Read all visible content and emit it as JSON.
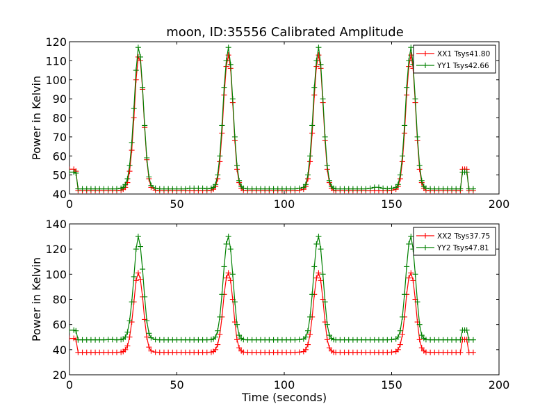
{
  "figure_title": "moon, ID:35556 Calibrated Amplitude",
  "chart_data": [
    {
      "type": "line",
      "title": "moon, ID:35556 Calibrated Amplitude",
      "xlabel": "",
      "ylabel": "Power in Kelvin",
      "xlim": [
        0,
        200
      ],
      "ylim": [
        40,
        120
      ],
      "xticks": [
        0,
        50,
        100,
        150,
        200
      ],
      "yticks": [
        40,
        50,
        60,
        70,
        80,
        90,
        100,
        110,
        120
      ],
      "legend_position": "top-right",
      "grid": false,
      "marker": "+",
      "x": [
        0,
        2,
        3,
        4,
        6,
        8,
        10,
        12,
        14,
        16,
        18,
        20,
        22,
        24,
        25,
        26,
        27,
        28,
        29,
        30,
        31,
        32,
        33,
        34,
        35,
        36,
        37,
        38,
        40,
        42,
        44,
        46,
        48,
        50,
        52,
        54,
        56,
        58,
        60,
        62,
        64,
        66,
        67,
        68,
        69,
        70,
        71,
        72,
        73,
        74,
        75,
        76,
        77,
        78,
        79,
        80,
        81,
        83,
        85,
        87,
        89,
        91,
        93,
        95,
        97,
        99,
        101,
        103,
        105,
        107,
        109,
        110,
        111,
        112,
        113,
        114,
        115,
        116,
        117,
        118,
        119,
        120,
        121,
        122,
        123,
        124,
        126,
        128,
        130,
        132,
        134,
        136,
        138,
        140,
        142,
        144,
        146,
        148,
        150,
        152,
        153,
        154,
        155,
        156,
        157,
        158,
        159,
        160,
        161,
        162,
        163,
        164,
        165,
        166,
        168,
        170,
        172,
        174,
        176,
        178,
        180,
        182,
        183,
        184,
        185,
        186,
        188
      ],
      "series": [
        {
          "name": "XX1 Tsys41.80",
          "color": "#ff0000",
          "values": [
            53,
            53,
            52,
            41.8,
            41.8,
            41.8,
            41.8,
            41.8,
            41.8,
            41.8,
            41.8,
            41.8,
            41.8,
            42,
            42.5,
            43.5,
            46,
            52,
            63,
            80,
            100,
            112,
            110,
            95,
            75,
            58,
            48,
            43.5,
            42,
            41.8,
            41.8,
            41.8,
            41.8,
            41.8,
            41.8,
            41.8,
            41.8,
            41.8,
            41.8,
            41.8,
            41.8,
            42,
            42.5,
            44,
            48,
            57,
            72,
            92,
            107,
            113,
            106,
            88,
            68,
            53,
            46,
            43,
            42,
            41.8,
            41.8,
            41.8,
            41.8,
            41.8,
            41.8,
            41.8,
            41.8,
            41.8,
            41.8,
            41.8,
            41.8,
            42,
            42.5,
            44,
            48,
            57,
            72,
            92,
            107,
            113,
            106,
            88,
            68,
            53,
            46,
            43,
            42,
            41.8,
            41.8,
            41.8,
            41.8,
            41.8,
            41.8,
            41.8,
            41.8,
            41.8,
            41.8,
            41.8,
            41.8,
            41.8,
            42,
            42.5,
            44,
            48,
            57,
            72,
            92,
            107,
            113,
            106,
            88,
            68,
            53,
            46,
            43,
            42,
            41.8,
            41.8,
            41.8,
            41.8,
            41.8,
            41.8,
            41.8,
            41.8,
            53,
            53,
            53,
            41.8,
            41.8
          ]
        },
        {
          "name": "YY1 Tsys42.66",
          "color": "#008000",
          "values": [
            51.5,
            51.5,
            51,
            42.7,
            42.7,
            42.7,
            42.7,
            42.7,
            42.7,
            42.7,
            42.7,
            42.7,
            42.7,
            43,
            43.5,
            45,
            48,
            55,
            67,
            85,
            105,
            117,
            112,
            96,
            76,
            59,
            49,
            44.5,
            43,
            42.7,
            42.7,
            42.7,
            42.7,
            42.7,
            42.7,
            42.7,
            43,
            43,
            43,
            43,
            42.7,
            43,
            43.5,
            45,
            50,
            60,
            76,
            96,
            110,
            117,
            108,
            90,
            70,
            55,
            47,
            44,
            43,
            42.7,
            42.7,
            42.7,
            42.7,
            42.7,
            42.7,
            42.7,
            42.7,
            42.7,
            42.7,
            42.7,
            42.7,
            43,
            43.5,
            45,
            50,
            60,
            76,
            96,
            110,
            117,
            108,
            90,
            70,
            55,
            47,
            44,
            43,
            42.7,
            42.7,
            42.7,
            42.7,
            42.7,
            42.7,
            42.7,
            42.7,
            43,
            43.5,
            43.5,
            43,
            42.7,
            43,
            43.5,
            45,
            50,
            60,
            76,
            96,
            110,
            117,
            108,
            90,
            70,
            55,
            47,
            44,
            43,
            42.7,
            42.7,
            42.7,
            42.7,
            42.7,
            42.7,
            42.7,
            42.7,
            51.5,
            51.5,
            51.5,
            42.7,
            42.7
          ]
        }
      ]
    },
    {
      "type": "line",
      "title": "",
      "xlabel": "Time (seconds)",
      "ylabel": "Power in Kelvin",
      "xlim": [
        0,
        200
      ],
      "ylim": [
        20,
        140
      ],
      "xticks": [
        0,
        50,
        100,
        150,
        200
      ],
      "yticks": [
        20,
        40,
        60,
        80,
        100,
        120,
        140
      ],
      "legend_position": "top-right",
      "grid": false,
      "marker": "+",
      "x": [
        0,
        2,
        3,
        4,
        6,
        8,
        10,
        12,
        14,
        16,
        18,
        20,
        22,
        24,
        25,
        26,
        27,
        28,
        29,
        30,
        31,
        32,
        33,
        34,
        35,
        36,
        37,
        38,
        40,
        42,
        44,
        46,
        48,
        50,
        52,
        54,
        56,
        58,
        60,
        62,
        64,
        66,
        67,
        68,
        69,
        70,
        71,
        72,
        73,
        74,
        75,
        76,
        77,
        78,
        79,
        80,
        81,
        83,
        85,
        87,
        89,
        91,
        93,
        95,
        97,
        99,
        101,
        103,
        105,
        107,
        109,
        110,
        111,
        112,
        113,
        114,
        115,
        116,
        117,
        118,
        119,
        120,
        121,
        122,
        123,
        124,
        126,
        128,
        130,
        132,
        134,
        136,
        138,
        140,
        142,
        144,
        146,
        148,
        150,
        152,
        153,
        154,
        155,
        156,
        157,
        158,
        159,
        160,
        161,
        162,
        163,
        164,
        165,
        166,
        168,
        170,
        172,
        174,
        176,
        178,
        180,
        182,
        183,
        184,
        185,
        186,
        188
      ],
      "series": [
        {
          "name": "XX2 Tsys37.75",
          "color": "#ff0000",
          "values": [
            49,
            49,
            48,
            37.8,
            37.8,
            37.8,
            37.8,
            37.8,
            37.8,
            37.8,
            37.8,
            37.8,
            37.8,
            38,
            38.5,
            40,
            43,
            50,
            62,
            78,
            95,
            101,
            96,
            82,
            64,
            50,
            42,
            39,
            38,
            37.8,
            37.8,
            37.8,
            37.8,
            37.8,
            37.8,
            37.8,
            37.8,
            37.8,
            37.8,
            37.8,
            37.8,
            38,
            38.5,
            40,
            44,
            52,
            66,
            84,
            97,
            101,
            95,
            80,
            62,
            48,
            41.5,
            39,
            38,
            37.8,
            37.8,
            37.8,
            37.8,
            37.8,
            37.8,
            37.8,
            37.8,
            37.8,
            37.8,
            37.8,
            37.8,
            38,
            38.5,
            40,
            44,
            52,
            66,
            84,
            97,
            101,
            95,
            80,
            62,
            48,
            41.5,
            39,
            38,
            37.8,
            37.8,
            37.8,
            37.8,
            37.8,
            37.8,
            37.8,
            37.8,
            37.8,
            37.8,
            37.8,
            37.8,
            37.8,
            38,
            38.5,
            40,
            44,
            52,
            66,
            84,
            97,
            101,
            95,
            80,
            62,
            48,
            41.5,
            39,
            38,
            37.8,
            37.8,
            37.8,
            37.8,
            37.8,
            37.8,
            37.8,
            37.8,
            48,
            48,
            48,
            37.8,
            37.8
          ]
        },
        {
          "name": "YY2 Tsys47.81",
          "color": "#008000",
          "values": [
            55.5,
            55.5,
            55,
            47.8,
            47.8,
            47.8,
            47.8,
            47.8,
            47.8,
            47.8,
            48,
            48,
            47.8,
            48,
            48.5,
            50,
            54,
            63,
            78,
            98,
            120,
            130,
            122,
            104,
            82,
            63,
            53,
            49.5,
            48,
            47.8,
            47.8,
            47.8,
            47.8,
            47.8,
            47.8,
            47.8,
            47.8,
            47.8,
            47.8,
            47.8,
            47.8,
            48,
            48.5,
            50,
            55,
            66,
            84,
            106,
            124,
            130,
            120,
            100,
            78,
            60,
            51.5,
            49,
            48,
            47.8,
            47.8,
            47.8,
            47.8,
            47.8,
            47.8,
            47.8,
            47.8,
            47.8,
            47.8,
            47.8,
            47.8,
            48,
            48.5,
            50,
            55,
            66,
            84,
            106,
            124,
            130,
            120,
            100,
            78,
            60,
            51.5,
            49,
            48,
            47.8,
            47.8,
            47.8,
            47.8,
            47.8,
            47.8,
            47.8,
            47.8,
            47.8,
            47.8,
            47.8,
            47.8,
            47.8,
            48,
            48.5,
            50,
            55,
            66,
            84,
            106,
            124,
            130,
            120,
            100,
            78,
            60,
            51.5,
            49,
            48,
            47.8,
            47.8,
            47.8,
            47.8,
            47.8,
            47.8,
            47.8,
            47.8,
            55.5,
            55.5,
            55.5,
            47.8,
            47.8
          ]
        }
      ]
    }
  ]
}
